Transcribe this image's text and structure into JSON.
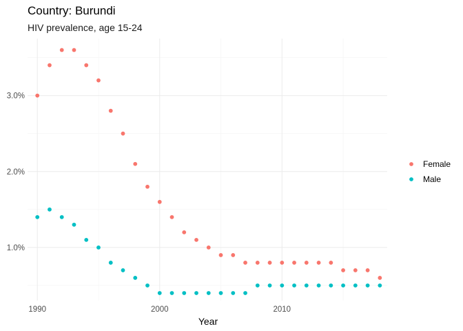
{
  "chart_data": {
    "type": "scatter",
    "title": "Country: Burundi",
    "subtitle": "HIV prevalence, age 15-24",
    "xlabel": "Year",
    "ylabel": "",
    "xlim": [
      1989.2,
      2018.6
    ],
    "ylim": [
      0.3,
      3.75
    ],
    "x_ticks": [
      1990,
      2000,
      2010
    ],
    "x_tick_labels": [
      "1990",
      "2000",
      "2010"
    ],
    "y_ticks": [
      1.0,
      2.0,
      3.0
    ],
    "y_tick_labels": [
      "1.0%",
      "2.0%",
      "3.0%"
    ],
    "grid": true,
    "legend_position": "right",
    "x": [
      1990,
      1991,
      1992,
      1993,
      1994,
      1995,
      1996,
      1997,
      1998,
      1999,
      2000,
      2001,
      2002,
      2003,
      2004,
      2005,
      2006,
      2007,
      2008,
      2009,
      2010,
      2011,
      2012,
      2013,
      2014,
      2015,
      2016,
      2017,
      2018
    ],
    "series": [
      {
        "name": "Female",
        "color": "#F8766D",
        "values": [
          3.0,
          3.4,
          3.6,
          3.6,
          3.4,
          3.2,
          2.8,
          2.5,
          2.1,
          1.8,
          1.6,
          1.4,
          1.2,
          1.1,
          1.0,
          0.9,
          0.9,
          0.8,
          0.8,
          0.8,
          0.8,
          0.8,
          0.8,
          0.8,
          0.8,
          0.7,
          0.7,
          0.7,
          0.6
        ]
      },
      {
        "name": "Male",
        "color": "#00BFC4",
        "values": [
          1.4,
          1.5,
          1.4,
          1.3,
          1.1,
          1.0,
          0.8,
          0.7,
          0.6,
          0.5,
          0.4,
          0.4,
          0.4,
          0.4,
          0.4,
          0.4,
          0.4,
          0.4,
          0.5,
          0.5,
          0.5,
          0.5,
          0.5,
          0.5,
          0.5,
          0.5,
          0.5,
          0.5,
          0.5
        ]
      }
    ]
  }
}
